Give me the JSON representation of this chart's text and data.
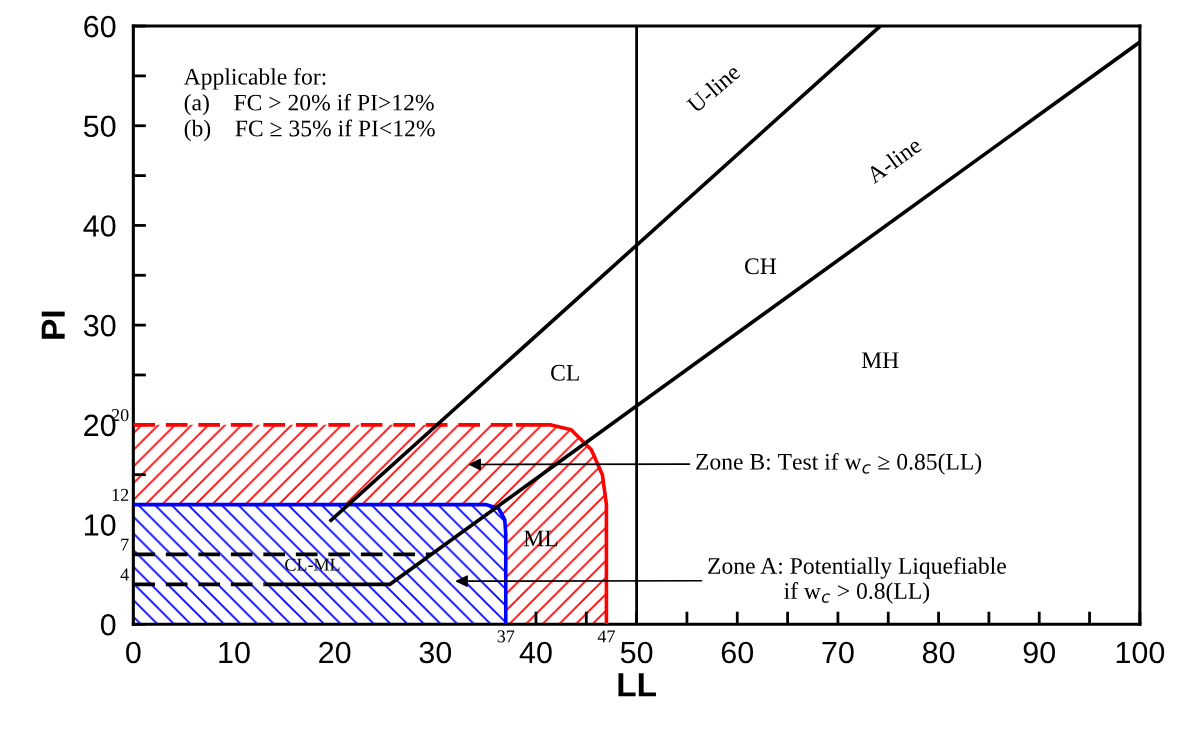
{
  "chart_data": {
    "type": "line",
    "xlabel": "LL",
    "ylabel": "PI",
    "xlim": [
      0,
      100
    ],
    "ylim": [
      0,
      60
    ],
    "xticks": [
      0,
      {
        "value": 5,
        "label": null
      },
      10,
      {
        "value": 15,
        "label": null
      },
      20,
      {
        "value": 25,
        "label": null
      },
      30,
      {
        "value": 35,
        "label": null
      },
      40,
      {
        "value": 45,
        "label": null
      },
      50,
      {
        "value": 55,
        "label": null
      },
      60,
      {
        "value": 65,
        "label": null
      },
      70,
      {
        "value": 75,
        "label": null
      },
      80,
      {
        "value": 85,
        "label": null
      },
      90,
      {
        "value": 95,
        "label": null
      },
      100
    ],
    "yticks": [
      0,
      {
        "value": 5,
        "label": null
      },
      10,
      {
        "value": 15,
        "label": null
      },
      20,
      {
        "value": 25,
        "label": null
      },
      30,
      {
        "value": 35,
        "label": null
      },
      40,
      {
        "value": 45,
        "label": null
      },
      50,
      {
        "value": 55,
        "label": null
      },
      60
    ],
    "grid": false,
    "legend": false,
    "marker": "none",
    "series": [
      {
        "type": "area",
        "color": "#ff0000",
        "line_style": "dashed",
        "x": [
          0,
          38
        ],
        "values": [
          20,
          20
        ]
      },
      {
        "type": "area",
        "color": "#ff0000",
        "line_style": "solid",
        "x": [
          38,
          41.4,
          43.5,
          45.5,
          46.6,
          47,
          47
        ],
        "values": [
          20,
          20,
          19.5,
          17.5,
          15,
          12,
          0
        ]
      },
      {
        "type": "area",
        "color": "#0000ff",
        "line_style": "solid",
        "x": [
          0,
          35,
          36.3,
          36.9,
          37,
          37
        ],
        "values": [
          12,
          12,
          11.6,
          10.5,
          9,
          0
        ]
      },
      {
        "color": "#000000",
        "line_style": "dashed",
        "x": [
          0,
          29.6
        ],
        "values": [
          7,
          7
        ]
      },
      {
        "color": "#000000",
        "line_style": "dashed",
        "x": [
          0,
          13
        ],
        "values": [
          4,
          4
        ]
      },
      {
        "color": "#000000",
        "line_style": "solid",
        "x": [
          13,
          25.5,
          100
        ],
        "values": [
          4,
          4,
          58.4
        ]
      },
      {
        "color": "#000000",
        "line_style": "solid",
        "x": [
          19.5,
          74.2
        ],
        "values": [
          10.3,
          60
        ]
      }
    ],
    "ref_lines": [
      {
        "axis": "x",
        "value": 50,
        "color": "#000000",
        "line_style": "solid"
      }
    ],
    "annotations": [
      "Applicable for:\n(a)    FC > 20% if PI>12%\n(b)    FC ≥ 35% if PI<12%",
      "U-line",
      "A-line",
      "CL",
      "CH",
      "MH",
      "ML",
      "CL-ML",
      "Zone B: Test if w$_{c}$ ≥ 0.85(LL)",
      "Zone A: Potentially Liquefiable\nif w$_{c}$ > 0.8(LL)",
      {
        "text": "20",
        "x": 0,
        "y": 20
      },
      {
        "text": "12",
        "x": 0,
        "y": 12
      },
      {
        "text": "7",
        "x": 0,
        "y": 7
      },
      {
        "text": "4",
        "x": 0,
        "y": 4
      },
      {
        "text": "37",
        "x": 37,
        "y": 0
      },
      {
        "text": "47",
        "x": 47,
        "y": 0
      }
    ]
  }
}
